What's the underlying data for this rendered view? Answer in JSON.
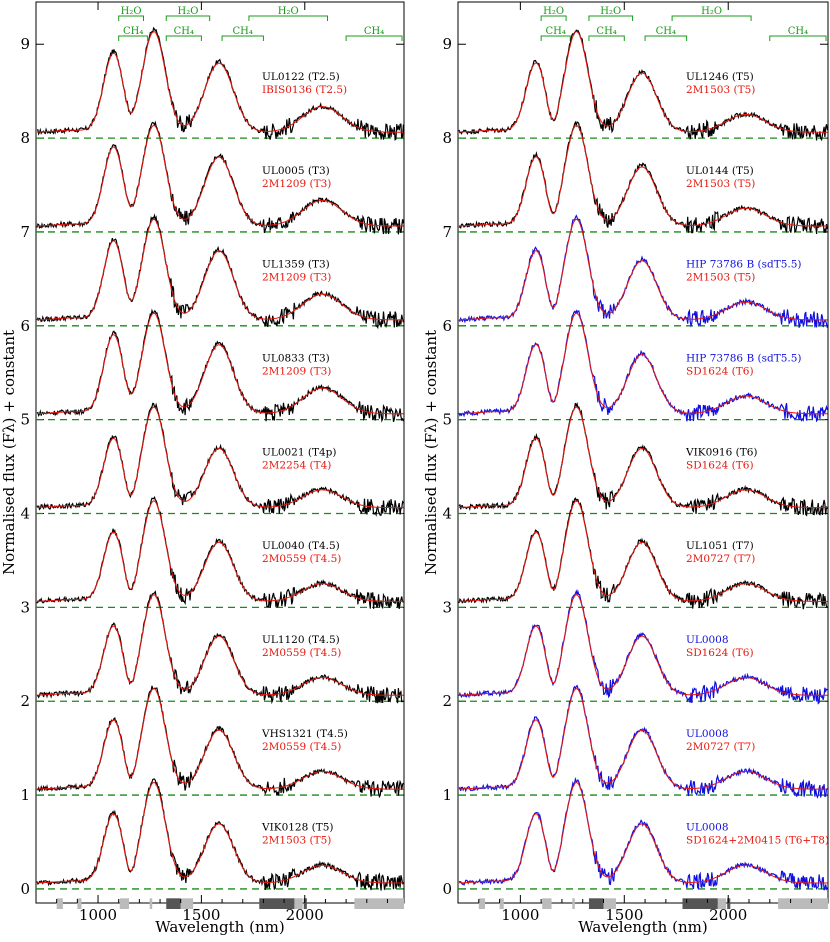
{
  "chart_data": [
    {
      "type": "line",
      "panel": "left",
      "xlabel": "Wavelength (nm)",
      "ylabel": "Normalised flux (Fλ) + constant",
      "xlim": [
        700,
        2480
      ],
      "ylim": [
        -0.15,
        9.45
      ],
      "xticks": [
        1000,
        1500,
        2000
      ],
      "yticks": [
        0,
        1,
        2,
        3,
        4,
        5,
        6,
        7,
        8,
        9
      ],
      "grid": false,
      "molecular_bands": {
        "h2o": [
          {
            "label": "H₂O",
            "range": [
              1100,
              1220
            ]
          },
          {
            "label": "H₂O",
            "range": [
              1330,
              1540
            ]
          },
          {
            "label": "H₂O",
            "range": [
              1730,
              2110
            ]
          }
        ],
        "ch4": [
          {
            "label": "CH₄",
            "range": [
              1100,
              1240
            ]
          },
          {
            "label": "CH₄",
            "range": [
              1330,
              1500
            ]
          },
          {
            "label": "CH₄",
            "range": [
              1600,
              1800
            ]
          },
          {
            "label": "CH₄",
            "range": [
              2200,
              2480
            ]
          }
        ]
      },
      "spectra": [
        {
          "offset": 8,
          "target": "UL0122 (T2.5)",
          "template": "IBIS0136 (T2.5)",
          "target_color": "#000000",
          "template_color": "#e8160c"
        },
        {
          "offset": 7,
          "target": "UL0005 (T3)",
          "template": "2M1209 (T3)",
          "target_color": "#000000",
          "template_color": "#e8160c"
        },
        {
          "offset": 6,
          "target": "UL1359 (T3)",
          "template": "2M1209 (T3)",
          "target_color": "#000000",
          "template_color": "#e8160c"
        },
        {
          "offset": 5,
          "target": "UL0833 (T3)",
          "template": "2M1209 (T3)",
          "target_color": "#000000",
          "template_color": "#e8160c"
        },
        {
          "offset": 4,
          "target": "UL0021 (T4p)",
          "template": "2M2254 (T4)",
          "target_color": "#000000",
          "template_color": "#e8160c"
        },
        {
          "offset": 3,
          "target": "UL0040 (T4.5)",
          "template": "2M0559 (T4.5)",
          "target_color": "#000000",
          "template_color": "#e8160c"
        },
        {
          "offset": 2,
          "target": "UL1120 (T4.5)",
          "template": "2M0559 (T4.5)",
          "target_color": "#000000",
          "template_color": "#e8160c"
        },
        {
          "offset": 1,
          "target": "VHS1321 (T4.5)",
          "template": "2M0559 (T4.5)",
          "target_color": "#000000",
          "template_color": "#e8160c"
        },
        {
          "offset": 0,
          "target": "VIK0128 (T5)",
          "template": "2M1503 (T5)",
          "target_color": "#000000",
          "template_color": "#e8160c"
        }
      ]
    },
    {
      "type": "line",
      "panel": "right",
      "xlabel": "Wavelength (nm)",
      "ylabel": "Normalised flux (Fλ) + constant",
      "xlim": [
        700,
        2480
      ],
      "ylim": [
        -0.15,
        9.45
      ],
      "xticks": [
        1000,
        1500,
        2000
      ],
      "yticks": [
        0,
        1,
        2,
        3,
        4,
        5,
        6,
        7,
        8,
        9
      ],
      "grid": false,
      "molecular_bands": {
        "h2o": [
          {
            "label": "H₂O",
            "range": [
              1100,
              1220
            ]
          },
          {
            "label": "H₂O",
            "range": [
              1330,
              1540
            ]
          },
          {
            "label": "H₂O",
            "range": [
              1730,
              2110
            ]
          }
        ],
        "ch4": [
          {
            "label": "CH₄",
            "range": [
              1100,
              1240
            ]
          },
          {
            "label": "CH₄",
            "range": [
              1330,
              1500
            ]
          },
          {
            "label": "CH₄",
            "range": [
              1600,
              1800
            ]
          },
          {
            "label": "CH₄",
            "range": [
              2200,
              2480
            ]
          }
        ]
      },
      "spectra": [
        {
          "offset": 8,
          "target": "UL1246 (T5)",
          "template": "2M1503 (T5)",
          "target_color": "#000000",
          "template_color": "#e8160c"
        },
        {
          "offset": 7,
          "target": "UL0144 (T5)",
          "template": "2M1503 (T5)",
          "target_color": "#000000",
          "template_color": "#e8160c"
        },
        {
          "offset": 6,
          "target": "HIP 73786 B (sdT5.5)",
          "template": "2M1503 (T5)",
          "target_color": "#1010e0",
          "template_color": "#e8160c"
        },
        {
          "offset": 5,
          "target": "HIP 73786 B (sdT5.5)",
          "template": "SD1624 (T6)",
          "target_color": "#1010e0",
          "template_color": "#e8160c"
        },
        {
          "offset": 4,
          "target": "VIK0916 (T6)",
          "template": "SD1624 (T6)",
          "target_color": "#000000",
          "template_color": "#e8160c"
        },
        {
          "offset": 3,
          "target": "UL1051 (T7)",
          "template": "2M0727 (T7)",
          "target_color": "#000000",
          "template_color": "#e8160c"
        },
        {
          "offset": 2,
          "target": "UL0008",
          "template": "SD1624 (T6)",
          "target_color": "#1010e0",
          "template_color": "#e8160c"
        },
        {
          "offset": 1,
          "target": "UL0008",
          "template": "2M0727 (T7)",
          "target_color": "#1010e0",
          "template_color": "#e8160c"
        },
        {
          "offset": 0,
          "target": "UL0008",
          "template": "SD1624+2M0415 (T6+T8)",
          "target_color": "#1010e0",
          "template_color": "#e8160c"
        }
      ]
    }
  ]
}
